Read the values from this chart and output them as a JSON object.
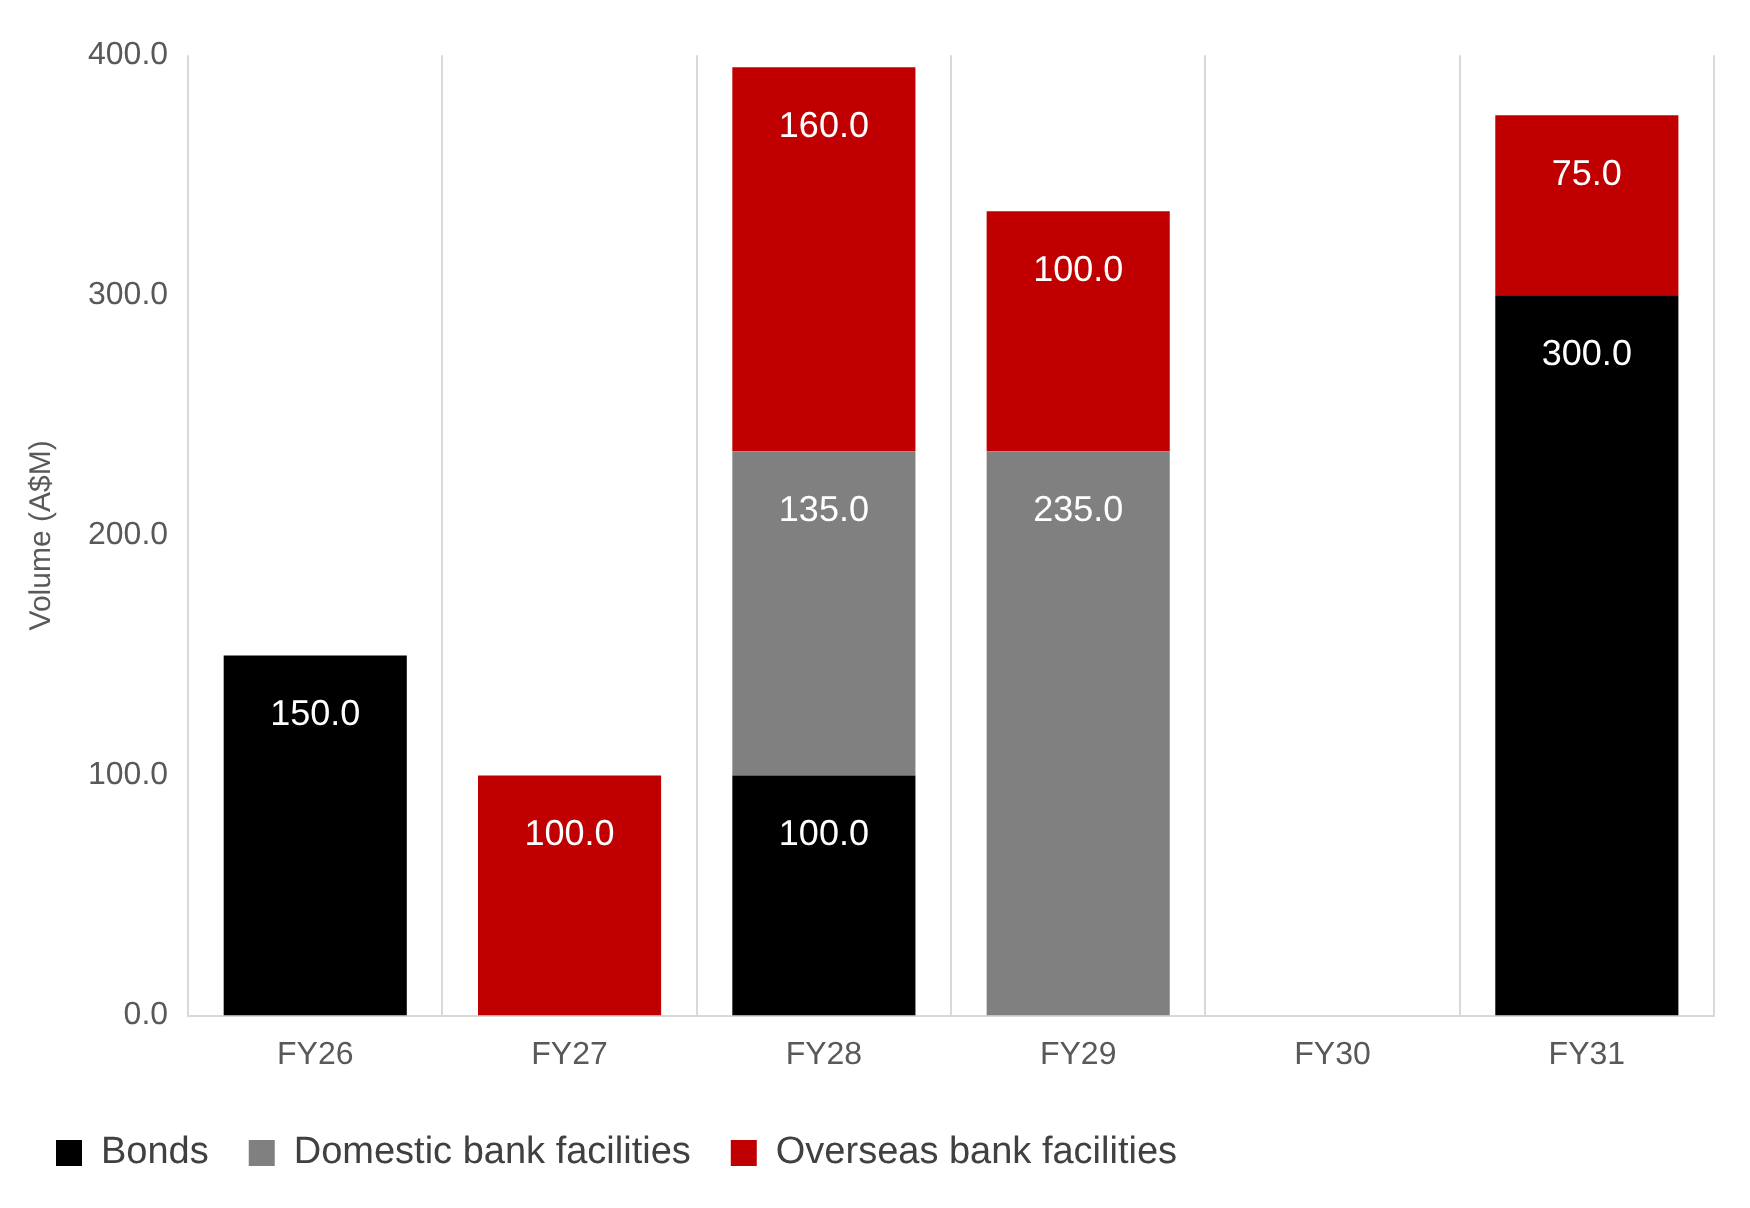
{
  "chart_data": {
    "type": "bar",
    "stacked": true,
    "ylabel": "Volume (A$M)",
    "categories": [
      "FY26",
      "FY27",
      "FY28",
      "FY29",
      "FY30",
      "FY31"
    ],
    "series": [
      {
        "name": "Bonds",
        "color": "#000000",
        "values": [
          150,
          null,
          100,
          null,
          null,
          300
        ],
        "value_labels": [
          "150.0",
          null,
          "100.0",
          null,
          null,
          "300.0"
        ]
      },
      {
        "name": "Domestic bank facilities",
        "color": "#808080",
        "values": [
          null,
          null,
          135,
          235,
          null,
          null
        ],
        "value_labels": [
          null,
          null,
          "135.0",
          "235.0",
          null,
          null
        ]
      },
      {
        "name": "Overseas bank facilities",
        "color": "#c00000",
        "values": [
          null,
          100,
          160,
          100,
          null,
          75
        ],
        "value_labels": [
          null,
          "100.0",
          "160.0",
          "100.0",
          null,
          "75.0"
        ]
      }
    ],
    "ylim": [
      0,
      400
    ],
    "yticks": [
      {
        "value": 0,
        "label": "0.0"
      },
      {
        "value": 100,
        "label": "100.0"
      },
      {
        "value": 200,
        "label": "200.0"
      },
      {
        "value": 300,
        "label": "300.0"
      },
      {
        "value": 400,
        "label": "400.0"
      }
    ],
    "grid": "x",
    "legend": "bottom"
  }
}
